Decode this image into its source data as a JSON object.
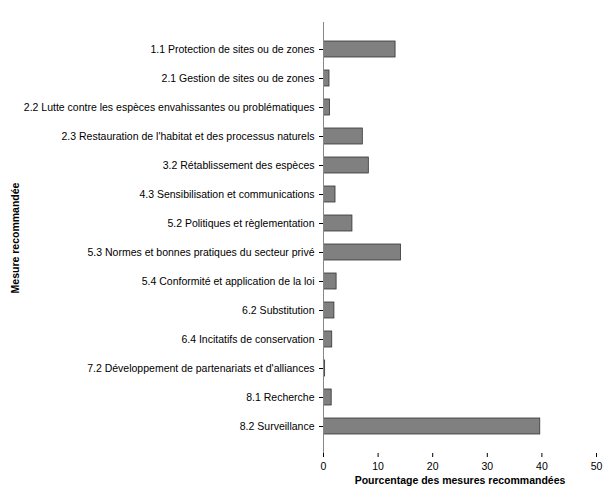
{
  "chart_data": {
    "type": "bar",
    "orientation": "horizontal",
    "x_label": "Pourcentage des mesures recommandées",
    "y_label": "Mesure recommandée",
    "categories": [
      "1.1 Protection de sites ou de zones",
      "2.1 Gestion de sites ou de zones",
      "2.2 Lutte contre les espèces envahissantes ou problématiques",
      "2.3 Restauration de l'habitat et des processus naturels",
      "3.2 Rétablissement des espèces",
      "4.3 Sensibilisation et communications",
      "5.2 Politiques et règlementation",
      "5.3 Normes et bonnes pratiques du secteur privé",
      "5.4 Conformité et application de la loi",
      "6.2 Substitution",
      "6.4 Incitatifs de conservation",
      "7.2 Développement de partenariats et d'alliances",
      "8.1 Recherche",
      "8.2 Surveillance"
    ],
    "values": [
      13.2,
      1.1,
      1.2,
      7.2,
      8.3,
      2.2,
      5.3,
      14.2,
      2.4,
      2.0,
      1.6,
      0.3,
      1.5,
      39.7
    ],
    "color": "#808080",
    "xlim": [
      0,
      50
    ],
    "xticks": [
      0,
      10,
      20,
      30,
      40,
      50
    ],
    "grid": false
  }
}
